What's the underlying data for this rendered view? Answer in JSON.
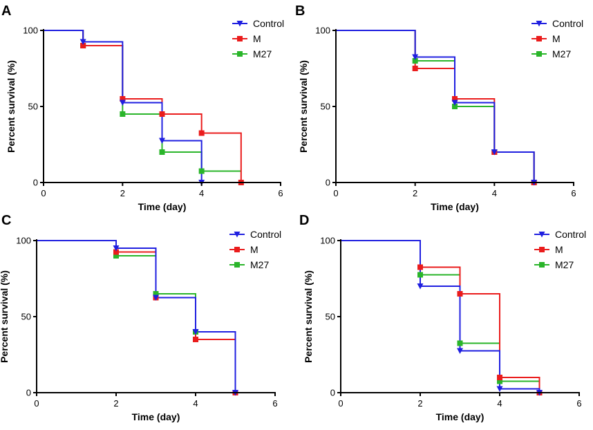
{
  "colors": {
    "control": "#1f1fe0",
    "m": "#ea1c1c",
    "m27": "#2ab52a",
    "axis": "#000000",
    "background": "#ffffff"
  },
  "legend_labels": [
    "Control",
    "M",
    "M27"
  ],
  "chart_data": [
    {
      "panel_label": "A",
      "type": "line",
      "subtype": "step (Kaplan-Meier survival)",
      "xlabel": "Time (day)",
      "ylabel": "Percent survival (%)",
      "xlim": [
        0,
        6
      ],
      "ylim": [
        0,
        100
      ],
      "xticks": [
        0,
        2,
        4,
        6
      ],
      "yticks": [
        0,
        50,
        100
      ],
      "legend_position": "top-right",
      "series": [
        {
          "name": "Control",
          "color_key": "control",
          "marker": "triangle-down",
          "steps": [
            [
              0,
              100
            ],
            [
              1,
              92.5
            ],
            [
              2,
              52.5
            ],
            [
              3,
              27.5
            ],
            [
              4,
              0
            ]
          ]
        },
        {
          "name": "M",
          "color_key": "m",
          "marker": "square",
          "steps": [
            [
              0,
              100
            ],
            [
              1,
              90
            ],
            [
              2,
              55
            ],
            [
              3,
              45
            ],
            [
              4,
              32.5
            ],
            [
              5,
              0
            ]
          ]
        },
        {
          "name": "M27",
          "color_key": "m27",
          "marker": "square",
          "steps": [
            [
              0,
              100
            ],
            [
              1,
              90
            ],
            [
              2,
              45
            ],
            [
              3,
              20
            ],
            [
              4,
              7.5
            ]
          ],
          "end_x": 5
        }
      ]
    },
    {
      "panel_label": "B",
      "type": "line",
      "subtype": "step (Kaplan-Meier survival)",
      "xlabel": "Time (day)",
      "ylabel": "Percent survival (%)",
      "xlim": [
        0,
        6
      ],
      "ylim": [
        0,
        100
      ],
      "xticks": [
        0,
        2,
        4,
        6
      ],
      "yticks": [
        0,
        50,
        100
      ],
      "legend_position": "top-right",
      "series": [
        {
          "name": "Control",
          "color_key": "control",
          "marker": "triangle-down",
          "steps": [
            [
              0,
              100
            ],
            [
              2,
              82.5
            ],
            [
              3,
              52.5
            ],
            [
              4,
              20
            ],
            [
              5,
              0
            ]
          ]
        },
        {
          "name": "M",
          "color_key": "m",
          "marker": "square",
          "steps": [
            [
              0,
              100
            ],
            [
              2,
              75
            ],
            [
              3,
              55
            ],
            [
              4,
              20
            ],
            [
              5,
              0
            ]
          ]
        },
        {
          "name": "M27",
          "color_key": "m27",
          "marker": "square",
          "steps": [
            [
              0,
              100
            ],
            [
              2,
              80
            ],
            [
              3,
              50
            ],
            [
              4,
              20
            ],
            [
              5,
              0
            ]
          ]
        }
      ]
    },
    {
      "panel_label": "C",
      "type": "line",
      "subtype": "step (Kaplan-Meier survival)",
      "xlabel": "Time (day)",
      "ylabel": "Percent survival (%)",
      "xlim": [
        0,
        6
      ],
      "ylim": [
        0,
        100
      ],
      "xticks": [
        0,
        2,
        4,
        6
      ],
      "yticks": [
        0,
        50,
        100
      ],
      "legend_position": "top-right",
      "series": [
        {
          "name": "Control",
          "color_key": "control",
          "marker": "triangle-down",
          "steps": [
            [
              0,
              100
            ],
            [
              2,
              95
            ],
            [
              3,
              62.5
            ],
            [
              4,
              40
            ],
            [
              5,
              0
            ]
          ]
        },
        {
          "name": "M",
          "color_key": "m",
          "marker": "square",
          "steps": [
            [
              0,
              100
            ],
            [
              2,
              92.5
            ],
            [
              3,
              62.5
            ],
            [
              4,
              35
            ],
            [
              5,
              0
            ]
          ]
        },
        {
          "name": "M27",
          "color_key": "m27",
          "marker": "square",
          "steps": [
            [
              0,
              100
            ],
            [
              2,
              90
            ],
            [
              3,
              65
            ],
            [
              4,
              40
            ],
            [
              5,
              0
            ]
          ]
        }
      ]
    },
    {
      "panel_label": "D",
      "type": "line",
      "subtype": "step (Kaplan-Meier survival)",
      "xlabel": "Time (day)",
      "ylabel": "Percent survival (%)",
      "xlim": [
        0,
        6
      ],
      "ylim": [
        0,
        100
      ],
      "xticks": [
        0,
        2,
        4,
        6
      ],
      "yticks": [
        0,
        50,
        100
      ],
      "legend_position": "top-right",
      "series": [
        {
          "name": "Control",
          "color_key": "control",
          "marker": "triangle-down",
          "steps": [
            [
              0,
              100
            ],
            [
              2,
              70
            ],
            [
              3,
              27.5
            ],
            [
              4,
              2.5
            ],
            [
              5,
              0
            ]
          ]
        },
        {
          "name": "M",
          "color_key": "m",
          "marker": "square",
          "steps": [
            [
              0,
              100
            ],
            [
              2,
              82.5
            ],
            [
              3,
              65
            ],
            [
              4,
              10
            ],
            [
              5,
              0
            ]
          ]
        },
        {
          "name": "M27",
          "color_key": "m27",
          "marker": "square",
          "steps": [
            [
              0,
              100
            ],
            [
              2,
              77.5
            ],
            [
              3,
              32.5
            ],
            [
              4,
              7.5
            ],
            [
              5,
              0
            ]
          ]
        }
      ]
    }
  ]
}
